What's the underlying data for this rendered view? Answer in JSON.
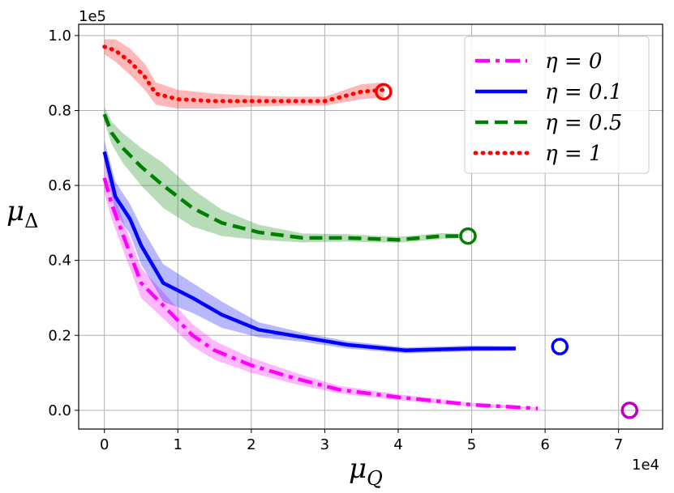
{
  "chart_data": {
    "type": "line",
    "x_offset_label": "1e4",
    "y_offset_label": "1e5",
    "xlabel_main": "μ",
    "xlabel_sub": "Q",
    "ylabel_main": "μ",
    "ylabel_sub": "Δ",
    "xlim": [
      -0.35,
      7.6
    ],
    "ylim": [
      -0.05,
      1.03
    ],
    "xticks": [
      0,
      1,
      2,
      3,
      4,
      5,
      6,
      7
    ],
    "yticks": [
      0.0,
      0.2,
      0.4,
      0.6,
      0.8,
      1.0
    ],
    "xtick_labels": [
      "0",
      "1",
      "2",
      "3",
      "4",
      "5",
      "6",
      "7"
    ],
    "ytick_labels": [
      "0.0",
      "0.2",
      "0.4",
      "0.6",
      "0.8",
      "1.0"
    ],
    "grid": true,
    "legend_position": "top-right",
    "series": [
      {
        "name": "η = 0",
        "label_base": "η = 0",
        "color": "#ff00ff",
        "dash": "dashdot",
        "x": [
          0.0,
          0.1,
          0.25,
          0.5,
          0.8,
          1.2,
          1.5,
          2.0,
          2.6,
          3.2,
          4.0,
          5.0,
          5.9
        ],
        "y": [
          0.62,
          0.55,
          0.47,
          0.34,
          0.28,
          0.2,
          0.16,
          0.12,
          0.085,
          0.055,
          0.035,
          0.015,
          0.005
        ],
        "band": [
          0.04,
          0.04,
          0.04,
          0.04,
          0.035,
          0.03,
          0.025,
          0.02,
          0.015,
          0.01,
          0.008,
          0.005,
          0.003
        ],
        "marker": {
          "x": 7.15,
          "y": 0.0,
          "color": "#bb00bb"
        }
      },
      {
        "name": "η = 0.1",
        "label_base": "η = 0.1",
        "color": "#0000ff",
        "dash": "solid",
        "x": [
          0.0,
          0.15,
          0.35,
          0.5,
          0.8,
          1.2,
          1.6,
          2.1,
          2.7,
          3.3,
          4.1,
          5.0,
          5.6
        ],
        "y": [
          0.69,
          0.57,
          0.51,
          0.44,
          0.34,
          0.3,
          0.255,
          0.215,
          0.195,
          0.175,
          0.16,
          0.165,
          0.165
        ],
        "band": [
          0.03,
          0.04,
          0.04,
          0.05,
          0.05,
          0.04,
          0.035,
          0.02,
          0.012,
          0.01,
          0.008,
          0.008,
          0.006
        ],
        "marker": {
          "x": 6.2,
          "y": 0.17,
          "color": "#0000ff"
        }
      },
      {
        "name": "η = 0.5",
        "label_base": "η = 0.5",
        "color": "#008000",
        "dash": "dashed",
        "x": [
          0.0,
          0.1,
          0.25,
          0.5,
          0.8,
          1.2,
          1.6,
          2.1,
          2.7,
          3.3,
          4.0,
          4.6,
          4.85
        ],
        "y": [
          0.79,
          0.74,
          0.7,
          0.65,
          0.6,
          0.54,
          0.5,
          0.475,
          0.46,
          0.46,
          0.455,
          0.465,
          0.465
        ],
        "band": [
          0.02,
          0.03,
          0.04,
          0.05,
          0.06,
          0.05,
          0.035,
          0.02,
          0.012,
          0.01,
          0.008,
          0.008,
          0.006
        ],
        "marker": {
          "x": 4.95,
          "y": 0.465,
          "color": "#008000"
        }
      },
      {
        "name": "η = 1",
        "label_base": "η = 1",
        "color": "#ff0000",
        "dash": "dotted",
        "x": [
          0.0,
          0.15,
          0.35,
          0.55,
          0.7,
          1.0,
          1.5,
          2.0,
          2.5,
          3.0,
          3.5,
          3.8
        ],
        "y": [
          0.97,
          0.96,
          0.93,
          0.89,
          0.845,
          0.83,
          0.825,
          0.825,
          0.825,
          0.825,
          0.85,
          0.855
        ],
        "band": [
          0.02,
          0.03,
          0.035,
          0.035,
          0.03,
          0.025,
          0.02,
          0.015,
          0.012,
          0.012,
          0.02,
          0.02
        ],
        "marker": {
          "x": 3.8,
          "y": 0.85,
          "color": "#ff0000"
        }
      }
    ]
  }
}
